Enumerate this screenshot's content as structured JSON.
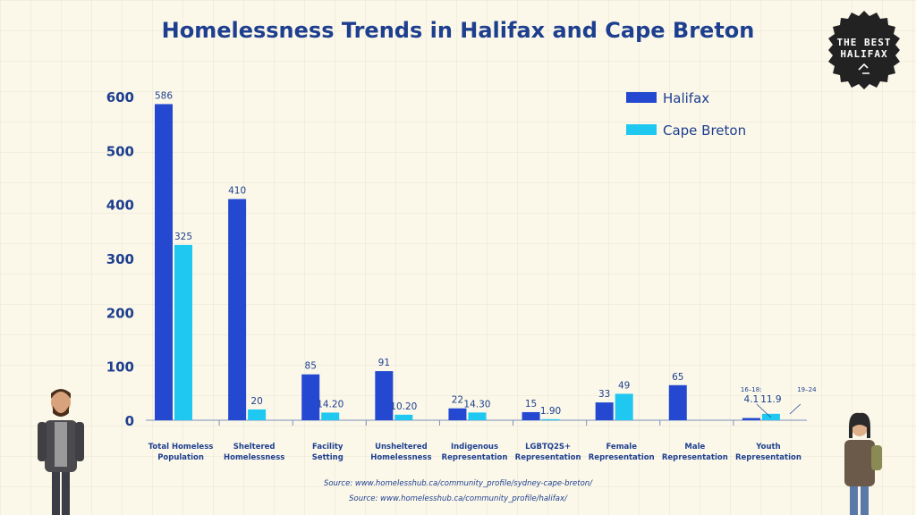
{
  "page": {
    "title": "Homelessness Trends in Halifax and Cape Breton",
    "badge_line1": "THE BEST",
    "badge_line2": "HALIFAX",
    "sources": [
      "Source: www.homelesshub.ca/community_profile/sydney-cape-breton/",
      "Source: www.homelesshub.ca/community_profile/halifax/"
    ]
  },
  "colors": {
    "halifax": "#2449d0",
    "cape_breton": "#1ec8f0",
    "text": "#1e3f8f",
    "background": "#fbf8ea"
  },
  "chart_data": {
    "type": "bar",
    "title": "Homelessness Trends in Halifax and Cape Breton",
    "xlabel": "",
    "ylabel": "",
    "ylim": [
      0,
      600
    ],
    "yticks": [
      "0",
      "100",
      "200",
      "300",
      "400",
      "500",
      "600"
    ],
    "grid": false,
    "legend_position": "top-right",
    "categories": [
      "Total Homeless Population",
      "Sheltered Homelessness",
      "Facility Setting",
      "Unsheltered Homelessness",
      "Indigenous Representation",
      "LGBTQ2S+ Representation",
      "Female Representation",
      "Male Representation",
      "Youth Representation"
    ],
    "category_lines": [
      [
        "Total Homeless",
        "Population"
      ],
      [
        "Sheltered",
        "Homelessness"
      ],
      [
        "Facility",
        "Setting"
      ],
      [
        "Unsheltered",
        "Homelessness"
      ],
      [
        "Indigenous",
        "Representation"
      ],
      [
        "LGBTQ2S+",
        "Representation"
      ],
      [
        "Female",
        "Representation"
      ],
      [
        "Male",
        "Representation"
      ],
      [
        "Youth",
        "Representation"
      ]
    ],
    "series": [
      {
        "name": "Halifax",
        "values": [
          586,
          410,
          85,
          91,
          22,
          15,
          33,
          65,
          4.1
        ],
        "labels": [
          "586",
          "410",
          "85",
          "91",
          "22",
          "15",
          "33",
          "65",
          "4.1"
        ]
      },
      {
        "name": "Cape Breton",
        "values": [
          325,
          20,
          14.2,
          10.2,
          14.3,
          1.9,
          49,
          null,
          11.9
        ],
        "labels": [
          "325",
          "20",
          "14.20",
          "10.20",
          "14.30",
          "1.90",
          "49",
          "",
          "11.9"
        ]
      }
    ],
    "annotations": [
      {
        "text": "16–18:",
        "series": "Halifax",
        "category": "Youth Representation"
      },
      {
        "text": "19–24",
        "series": "Cape Breton",
        "category": "Youth Representation"
      }
    ]
  }
}
